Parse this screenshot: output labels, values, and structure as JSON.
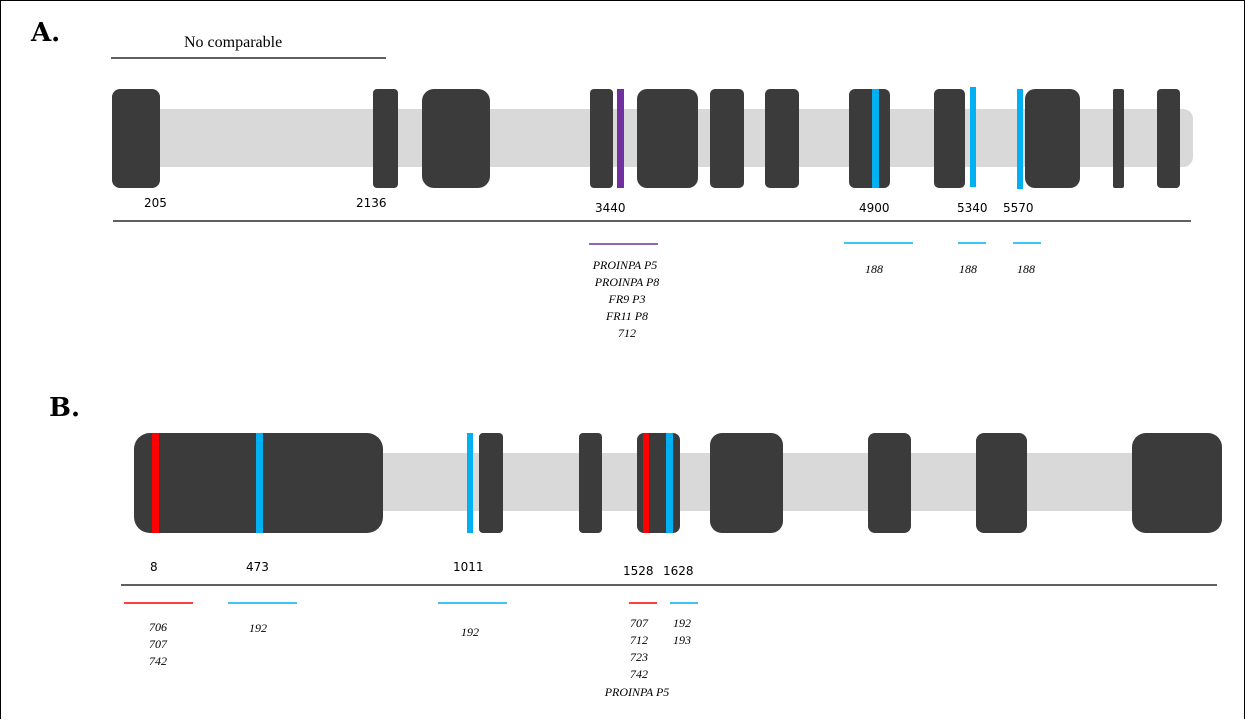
{
  "colors": {
    "exon": "#3b3b3b",
    "intron": "#d9d9d9",
    "purple": "#7030a0",
    "blue": "#00b0f0",
    "red": "#ff0000",
    "axis": "#000000"
  },
  "panelA": {
    "label": "A.",
    "note": "No comparable",
    "positions": [
      "205",
      "2136",
      "3440",
      "4900",
      "5340",
      "5570"
    ],
    "mutations": [
      {
        "color": "purple",
        "labels": [
          "PROINPA P5",
          "PROINPA P8",
          "FR9 P3",
          "FR11 P8",
          "712"
        ]
      },
      {
        "color": "blue",
        "labels": [
          "188"
        ]
      },
      {
        "color": "blue",
        "labels": [
          "188"
        ]
      },
      {
        "color": "blue",
        "labels": [
          "188"
        ]
      }
    ]
  },
  "panelB": {
    "label": "B.",
    "positions": [
      "8",
      "473",
      "1011",
      "1528",
      "1628"
    ],
    "mutations": [
      {
        "color": "red",
        "labels": [
          "706",
          "707",
          "742"
        ]
      },
      {
        "color": "blue",
        "labels": [
          "192"
        ]
      },
      {
        "color": "blue",
        "labels": [
          "192"
        ]
      },
      {
        "color": "red",
        "labels": [
          "707",
          "712",
          "723",
          "742",
          "PROINPA P5"
        ]
      },
      {
        "color": "blue",
        "labels": [
          "192",
          "193"
        ]
      }
    ]
  }
}
